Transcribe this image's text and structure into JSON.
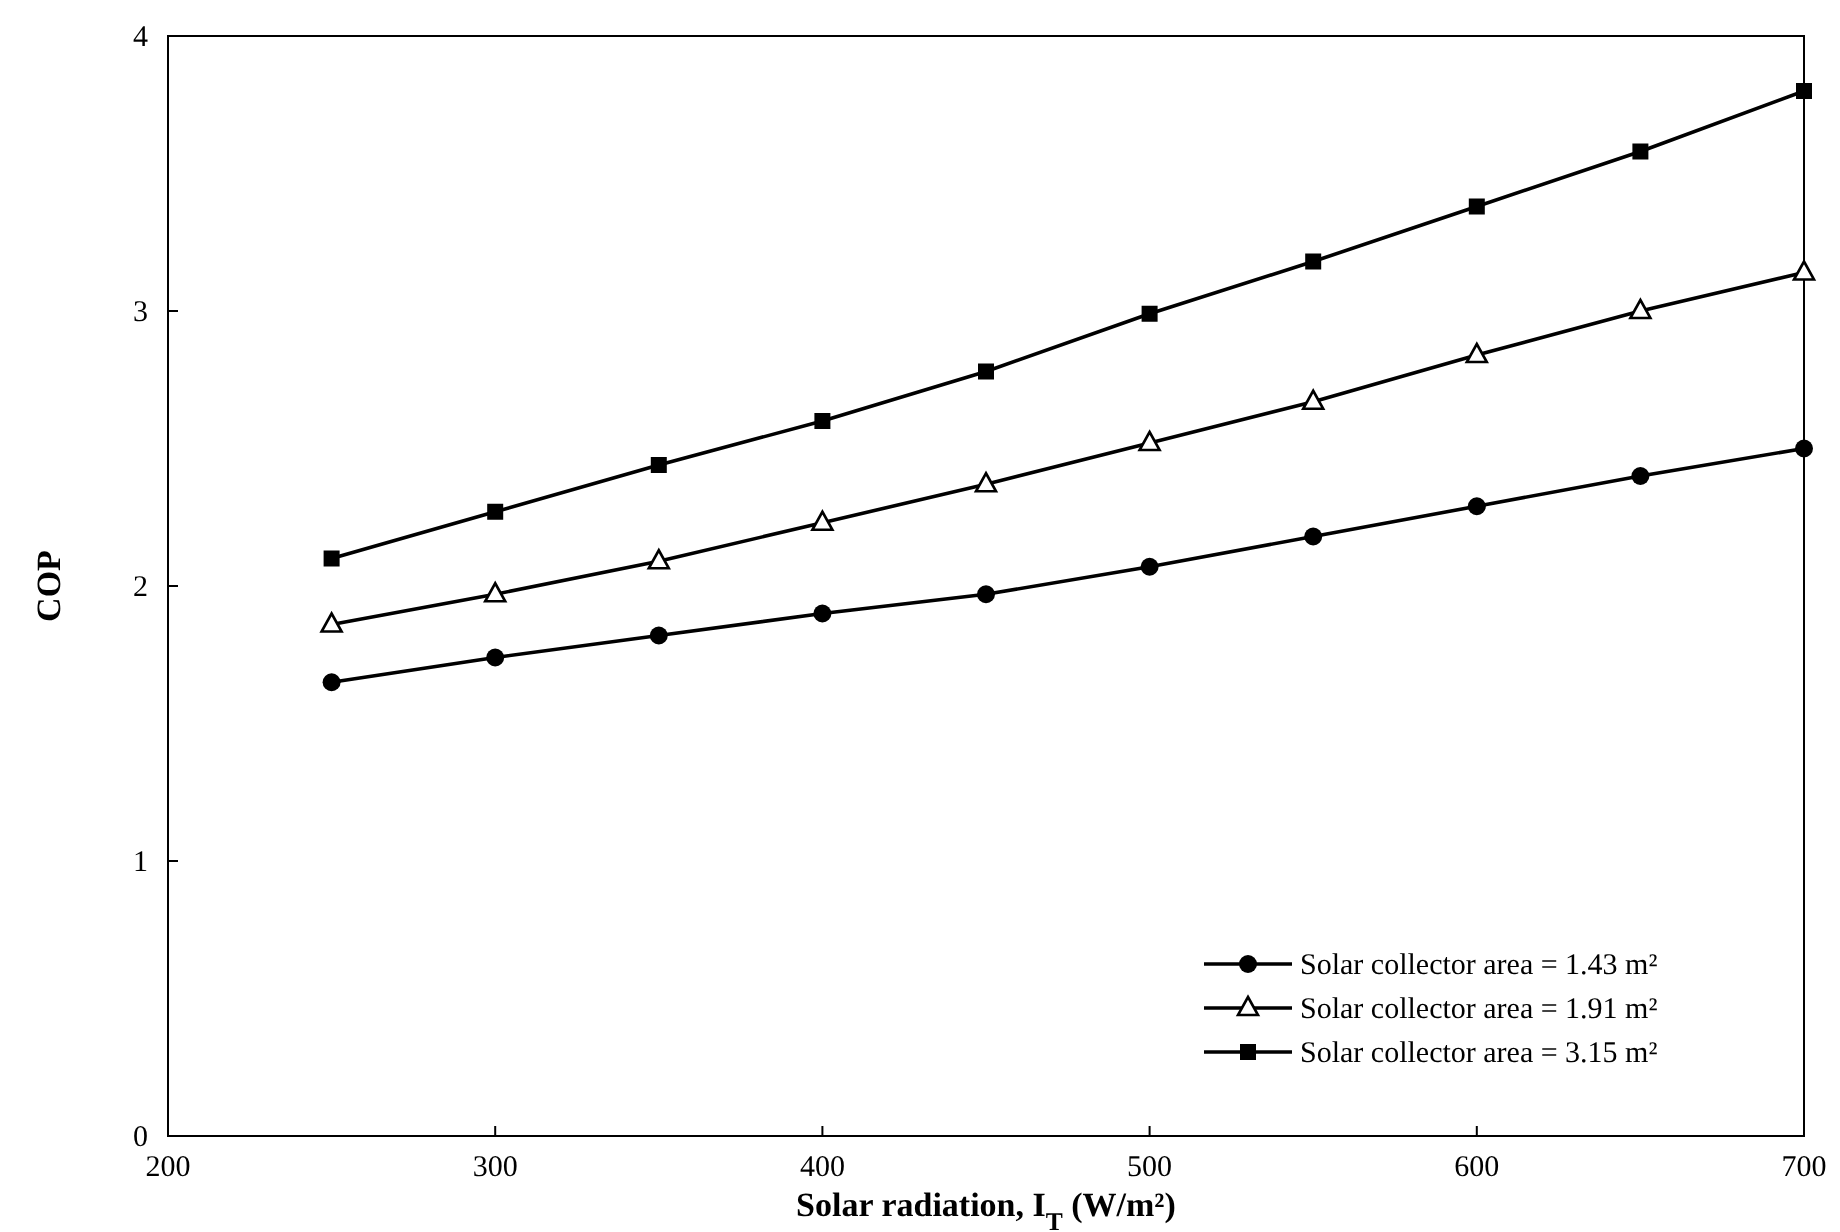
{
  "chart_data": {
    "type": "line",
    "xlabel": "Solar radiation, I$_{T}$ (W/m²)",
    "ylabel": "COP",
    "x": [
      250,
      300,
      350,
      400,
      450,
      500,
      550,
      600,
      650,
      700
    ],
    "xlim": [
      200,
      700
    ],
    "xticks": [
      200,
      300,
      400,
      500,
      600,
      700
    ],
    "ylim": [
      0,
      4
    ],
    "yticks": [
      0,
      1,
      2,
      3,
      4
    ],
    "grid": false,
    "legend": "bottom right",
    "series": [
      {
        "name": "Solar collector area = 1.43 m²",
        "color": "#000000",
        "marker": "circle",
        "values": [
          1.65,
          1.74,
          1.82,
          1.9,
          1.97,
          2.07,
          2.18,
          2.29,
          2.4,
          2.5
        ]
      },
      {
        "name": "Solar collector area = 1.91 m²",
        "color": "#000000",
        "marker": "triangle",
        "values": [
          1.86,
          1.97,
          2.09,
          2.23,
          2.37,
          2.52,
          2.67,
          2.84,
          3.0,
          3.14
        ]
      },
      {
        "name": "Solar collector area = 3.15 m²",
        "color": "#000000",
        "marker": "square",
        "values": [
          2.1,
          2.27,
          2.44,
          2.6,
          2.78,
          2.99,
          3.18,
          3.38,
          3.58,
          3.8
        ]
      }
    ]
  }
}
